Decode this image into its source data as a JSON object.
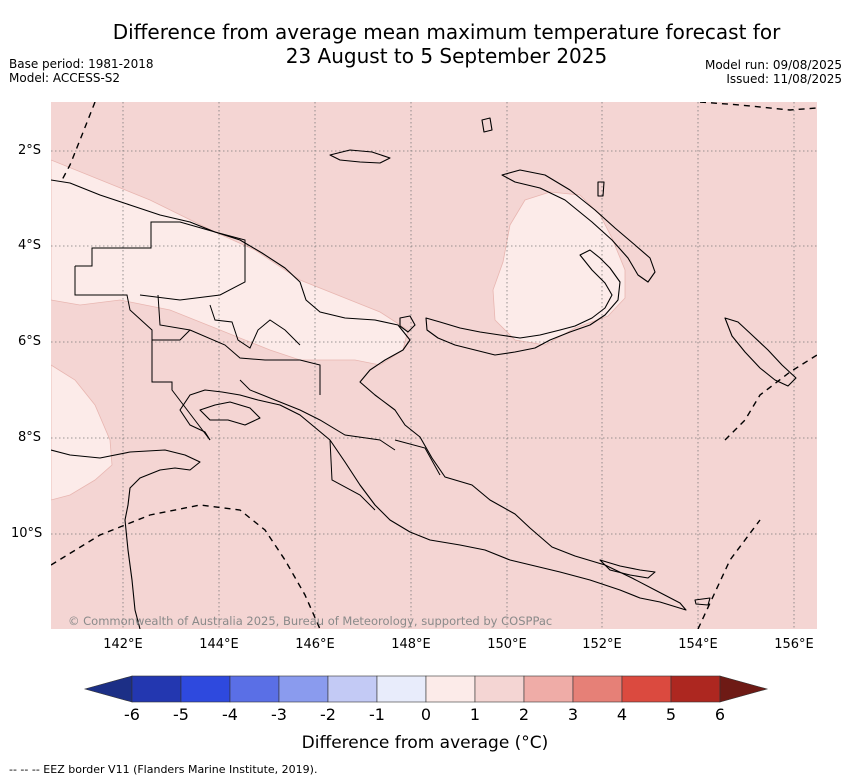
{
  "header": {
    "title_line1": "Difference from average mean maximum temperature forecast for",
    "title_line2": "23 August to 5 September 2025",
    "base_period": "Base period: 1981-2018",
    "model": "Model: ACCESS-S2",
    "model_run": "Model run: 09/08/2025",
    "issued": "Issued: 11/08/2025"
  },
  "map": {
    "region": "Papua New Guinea",
    "background_color": "#f4d5d3",
    "near_average_color": "#fcebe9",
    "latitude_labels": [
      "2°S",
      "4°S",
      "6°S",
      "8°S",
      "10°S"
    ],
    "longitude_labels": [
      "142°E",
      "144°E",
      "146°E",
      "148°E",
      "150°E",
      "152°E",
      "154°E",
      "156°E"
    ],
    "copyright": "© Commonwealth of Australia 2025, Bureau of Meteorology, supported by COSPPac"
  },
  "colorbar": {
    "labels": [
      "-6",
      "-5",
      "-4",
      "-3",
      "-2",
      "-1",
      "0",
      "1",
      "2",
      "3",
      "4",
      "5",
      "6"
    ],
    "colors": [
      "#1c2f86",
      "#2337b0",
      "#2e49de",
      "#5a6fe6",
      "#8a9bee",
      "#c3caf5",
      "#e8ecfb",
      "#fcebe9",
      "#f4d5d3",
      "#efaca7",
      "#e68077",
      "#db4a3f",
      "#ad2720",
      "#6e1a15"
    ],
    "title": "Difference from average (°C)"
  },
  "footer": {
    "legend_text": "--  --  -- EEZ border V11 (Flanders Marine Institute, 2019)."
  }
}
